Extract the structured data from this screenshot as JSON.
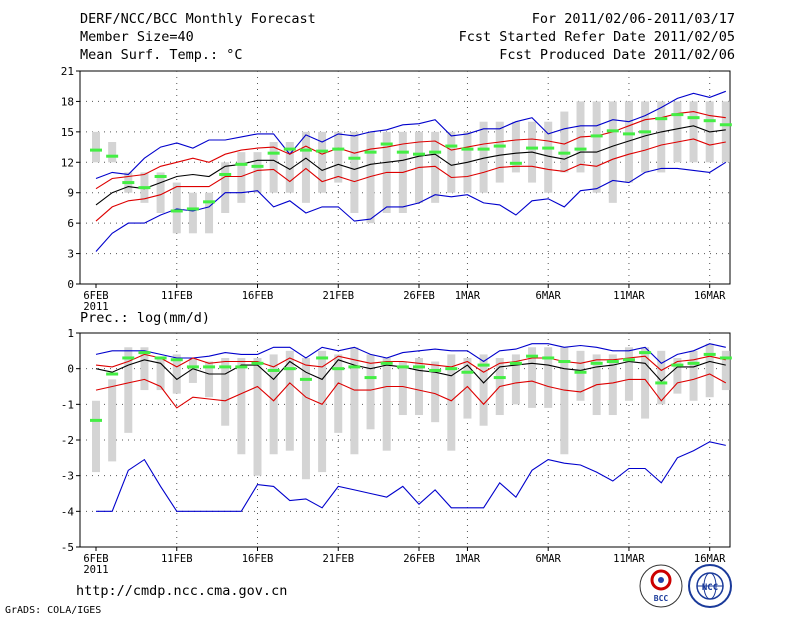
{
  "header": {
    "title": "DERF/NCC/BCC Monthly Forecast",
    "member_size": "Member Size=40",
    "variable": "Mean Surf. Temp.: °C",
    "period": "For 2011/02/06-2011/03/17",
    "refer_date": "Fcst Started Refer Date 2011/02/05",
    "produced_date": "Fcst Produced Date 2011/02/06"
  },
  "footer": {
    "url": "http://cmdp.ncc.cma.gov.cn",
    "grads": "GrADS: COLA/IGES",
    "logo_bcc": "BCC",
    "logo_ncc": "NCC"
  },
  "colors": {
    "box": "#d4d4d4",
    "median": "#44ee44",
    "mean": "#000000",
    "spread": "#dd0000",
    "extreme": "#0000cc",
    "grid": "#555555"
  },
  "chart_data": [
    {
      "type": "box",
      "title": "Mean Surf. Temp.: °C",
      "x_tick_labels": [
        "6FEB",
        "11FEB",
        "16FEB",
        "21FEB",
        "26FEB",
        "1MAR",
        "6MAR",
        "11MAR",
        "16MAR"
      ],
      "x_tick_days": [
        1,
        6,
        11,
        16,
        21,
        24,
        29,
        34,
        39
      ],
      "x_sub_label": "2011",
      "days": 40,
      "ylim": [
        0,
        21
      ],
      "y_ticks": [
        0,
        3,
        6,
        9,
        12,
        15,
        18,
        21
      ],
      "box_low": [
        12,
        12,
        9,
        8,
        7,
        5,
        5,
        5,
        7,
        8,
        9,
        9,
        9,
        8,
        9,
        10,
        7,
        6,
        7,
        7,
        8,
        8,
        9,
        9,
        9,
        10,
        11,
        10,
        9,
        11,
        11,
        9,
        8,
        10,
        11,
        11,
        12,
        12,
        12,
        12
      ],
      "box_high": [
        15,
        14,
        11,
        11,
        11,
        10,
        9,
        9,
        12,
        13,
        13,
        14,
        14,
        15,
        15,
        15,
        15,
        15,
        15,
        15,
        15,
        15,
        15,
        15,
        16,
        16,
        16,
        16,
        16,
        17,
        18,
        18,
        18,
        18,
        18,
        18,
        18,
        18,
        18,
        18
      ],
      "median": [
        13.2,
        12.6,
        10.0,
        9.5,
        10.6,
        7.2,
        7.4,
        8.1,
        10.8,
        11.8,
        11.6,
        12.9,
        13.3,
        13.2,
        13.1,
        13.3,
        12.4,
        13.0,
        13.8,
        13.0,
        12.8,
        13.0,
        13.6,
        13.3,
        13.3,
        13.6,
        11.9,
        13.4,
        13.4,
        12.9,
        13.3,
        14.6,
        15.1,
        14.8,
        15.0,
        16.3,
        16.7,
        16.4,
        16.1,
        15.7
      ],
      "mean": [
        7.8,
        9.0,
        9.6,
        9.4,
        10.0,
        10.6,
        10.8,
        10.6,
        11.6,
        11.8,
        12.2,
        12.2,
        11.3,
        12.4,
        11.2,
        11.8,
        11.3,
        11.8,
        12.0,
        12.2,
        12.6,
        12.8,
        11.7,
        12.0,
        12.4,
        12.7,
        12.9,
        13.0,
        12.6,
        12.3,
        13.0,
        13.0,
        13.6,
        14.1,
        14.6,
        15.0,
        15.3,
        15.6,
        15.0,
        15.2
      ],
      "mean_plus_sd": [
        9.4,
        10.4,
        10.6,
        10.8,
        11.6,
        12.0,
        12.4,
        12.0,
        12.8,
        13.2,
        13.4,
        13.5,
        12.8,
        13.6,
        12.8,
        13.4,
        12.9,
        13.3,
        13.5,
        13.8,
        14.0,
        14.1,
        13.2,
        13.5,
        13.8,
        14.0,
        14.2,
        14.3,
        14.1,
        13.8,
        14.5,
        14.6,
        15.0,
        15.6,
        16.2,
        16.4,
        16.8,
        17.0,
        16.6,
        16.4
      ],
      "mean_minus_sd": [
        6.2,
        7.6,
        8.2,
        8.4,
        8.8,
        9.6,
        9.6,
        9.6,
        10.6,
        10.6,
        11.2,
        11.3,
        10.1,
        11.4,
        10.1,
        10.6,
        10.1,
        10.6,
        11.0,
        11.0,
        11.5,
        11.6,
        10.5,
        10.6,
        11.0,
        11.5,
        11.6,
        11.6,
        11.3,
        11.1,
        11.8,
        11.6,
        12.3,
        12.8,
        13.2,
        13.7,
        14.0,
        14.3,
        13.7,
        14.0
      ],
      "max": [
        10.4,
        11.0,
        10.8,
        12.4,
        13.5,
        13.9,
        13.4,
        14.2,
        14.2,
        14.5,
        14.8,
        14.8,
        12.8,
        14.7,
        14.0,
        14.8,
        14.6,
        15.0,
        15.2,
        15.7,
        15.8,
        16.2,
        14.6,
        14.8,
        15.3,
        15.3,
        16.0,
        16.4,
        14.8,
        15.3,
        15.6,
        15.6,
        16.2,
        16.0,
        16.6,
        17.4,
        18.3,
        18.8,
        18.4,
        19.0
      ],
      "min": [
        3.2,
        5.0,
        6.0,
        6.0,
        6.8,
        7.4,
        7.2,
        7.6,
        9.0,
        9.0,
        9.2,
        7.6,
        8.2,
        7.0,
        7.6,
        7.6,
        6.2,
        6.4,
        7.6,
        7.6,
        8.0,
        8.8,
        8.6,
        8.8,
        8.0,
        7.8,
        6.8,
        8.2,
        8.4,
        7.6,
        9.2,
        9.4,
        10.2,
        10.0,
        11.0,
        11.4,
        11.4,
        11.2,
        11.0,
        12.0
      ]
    },
    {
      "type": "box",
      "title": "Prec.: log(mm/d)",
      "x_tick_labels": [
        "6FEB",
        "11FEB",
        "16FEB",
        "21FEB",
        "26FEB",
        "1MAR",
        "6MAR",
        "11MAR",
        "16MAR"
      ],
      "x_tick_days": [
        1,
        6,
        11,
        16,
        21,
        24,
        29,
        34,
        39
      ],
      "x_sub_label": "2011",
      "days": 40,
      "ylim": [
        -5,
        1
      ],
      "y_ticks": [
        -5,
        -4,
        -3,
        -2,
        -1,
        0,
        1
      ],
      "box_low": [
        -2.9,
        -2.6,
        -1.8,
        -0.6,
        -0.6,
        -0.7,
        -0.4,
        -0.8,
        -1.6,
        -2.4,
        -3.0,
        -2.4,
        -2.3,
        -3.1,
        -2.9,
        -1.8,
        -2.4,
        -1.7,
        -2.3,
        -1.3,
        -1.3,
        -1.5,
        -2.3,
        -1.4,
        -1.6,
        -1.3,
        -1.0,
        -1.1,
        -1.1,
        -2.4,
        -0.9,
        -1.3,
        -1.3,
        -0.9,
        -1.4,
        -1.0,
        -0.7,
        -0.9,
        -0.8,
        -0.6
      ],
      "box_high": [
        -0.9,
        -0.3,
        0.6,
        0.6,
        0.3,
        0.4,
        0.3,
        0.2,
        0.3,
        0.3,
        0.3,
        0.4,
        0.5,
        0.3,
        0.5,
        0.4,
        0.6,
        0.4,
        0.3,
        0.2,
        0.3,
        0.2,
        0.4,
        0.3,
        0.4,
        0.3,
        0.4,
        0.6,
        0.6,
        0.6,
        0.5,
        0.4,
        0.4,
        0.6,
        0.6,
        0.5,
        0.3,
        0.5,
        0.7,
        0.5
      ],
      "median": [
        -1.45,
        -0.15,
        0.3,
        0.45,
        0.3,
        0.25,
        0.05,
        0.05,
        0.05,
        0.05,
        0.15,
        -0.05,
        0.0,
        -0.3,
        0.3,
        0.0,
        0.05,
        -0.25,
        0.15,
        0.05,
        0.05,
        -0.05,
        0.0,
        -0.1,
        0.1,
        -0.25,
        0.15,
        0.35,
        0.3,
        0.2,
        -0.1,
        0.15,
        0.2,
        0.25,
        0.45,
        -0.4,
        0.1,
        0.15,
        0.4,
        0.3
      ],
      "mean": [
        0.0,
        -0.1,
        0.1,
        0.25,
        0.15,
        -0.3,
        0.0,
        -0.15,
        -0.15,
        0.1,
        0.1,
        -0.3,
        0.2,
        -0.1,
        -0.3,
        0.25,
        0.1,
        0.0,
        0.1,
        0.05,
        -0.05,
        -0.1,
        -0.2,
        0.1,
        -0.4,
        0.05,
        0.1,
        0.15,
        0.1,
        0.0,
        -0.05,
        0.05,
        0.1,
        0.2,
        0.15,
        -0.35,
        0.05,
        0.05,
        0.2,
        0.1
      ],
      "mean_plus_sd": [
        0.1,
        0.05,
        0.2,
        0.4,
        0.3,
        0.05,
        0.3,
        0.15,
        0.2,
        0.2,
        0.2,
        0.05,
        0.3,
        0.1,
        0.05,
        0.35,
        0.25,
        0.15,
        0.2,
        0.2,
        0.15,
        0.1,
        0.05,
        0.2,
        -0.1,
        0.15,
        0.2,
        0.3,
        0.3,
        0.2,
        0.15,
        0.25,
        0.25,
        0.3,
        0.35,
        -0.05,
        0.2,
        0.25,
        0.35,
        0.25
      ],
      "mean_minus_sd": [
        -0.6,
        -0.5,
        -0.4,
        -0.3,
        -0.5,
        -1.1,
        -0.8,
        -0.85,
        -0.9,
        -0.7,
        -0.5,
        -0.9,
        -0.4,
        -0.8,
        -1.0,
        -0.4,
        -0.6,
        -0.6,
        -0.5,
        -0.5,
        -0.6,
        -0.7,
        -0.9,
        -0.5,
        -1.0,
        -0.5,
        -0.4,
        -0.35,
        -0.5,
        -0.6,
        -0.65,
        -0.45,
        -0.4,
        -0.3,
        -0.3,
        -0.9,
        -0.4,
        -0.3,
        -0.15,
        -0.4
      ],
      "max": [
        0.4,
        0.5,
        0.5,
        0.5,
        0.4,
        0.3,
        0.3,
        0.35,
        0.45,
        0.4,
        0.4,
        0.6,
        0.6,
        0.3,
        0.6,
        0.5,
        0.6,
        0.4,
        0.3,
        0.45,
        0.5,
        0.55,
        0.5,
        0.5,
        0.2,
        0.5,
        0.55,
        0.7,
        0.7,
        0.6,
        0.65,
        0.6,
        0.5,
        0.5,
        0.6,
        0.15,
        0.4,
        0.5,
        0.7,
        0.6
      ],
      "min": [
        -4.0,
        -4.0,
        -2.85,
        -2.55,
        -3.3,
        -4.0,
        -4.0,
        -4.0,
        -4.0,
        -4.0,
        -3.25,
        -3.3,
        -3.7,
        -3.65,
        -3.9,
        -3.3,
        -3.4,
        -3.5,
        -3.6,
        -3.3,
        -3.8,
        -3.4,
        -3.9,
        -3.9,
        -3.9,
        -3.2,
        -3.6,
        -2.85,
        -2.55,
        -2.65,
        -2.7,
        -2.9,
        -3.15,
        -2.8,
        -2.8,
        -3.2,
        -2.5,
        -2.3,
        -2.05,
        -2.15
      ]
    }
  ]
}
